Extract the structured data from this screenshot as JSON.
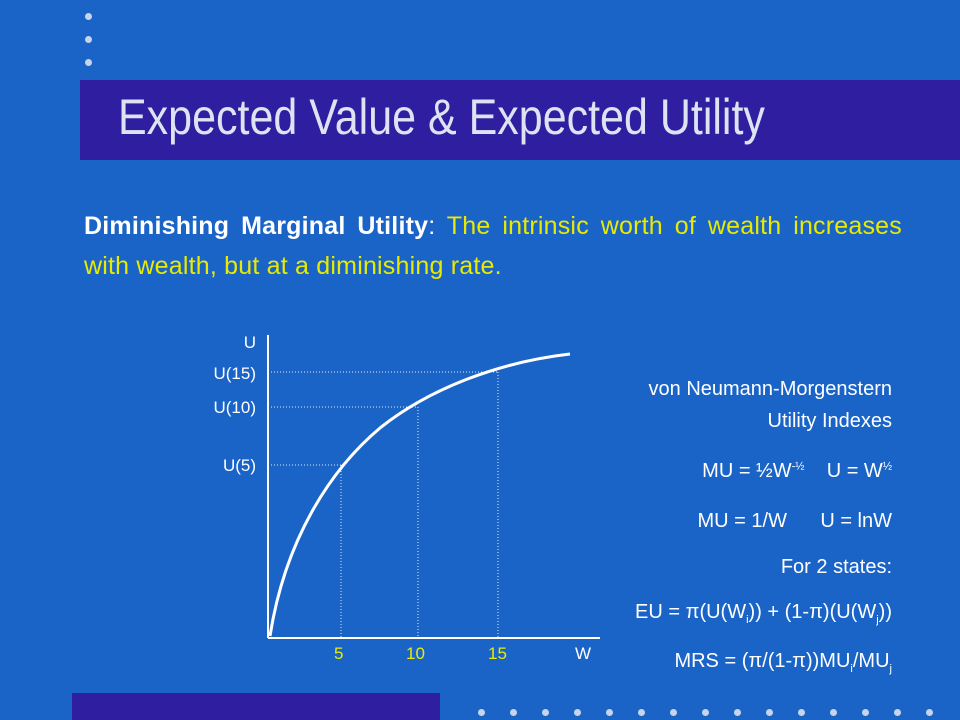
{
  "title": "Expected Value & Expected Utility",
  "intro": {
    "term": "Diminishing Marginal Utility",
    "colon": ":",
    "text": " The intrinsic worth of wealth increases with wealth, but at a diminishing rate."
  },
  "graph": {
    "y_axis_label": "U",
    "x_axis_label": "W",
    "y_markers": [
      "U(15)",
      "U(10)",
      "U(5)"
    ],
    "x_ticks": [
      "5",
      "10",
      "15"
    ],
    "curve": "concave utility function U(W)"
  },
  "info": {
    "heading_line1": "von Neumann-Morgenstern",
    "heading_line2": "Utility Indexes",
    "sqrt_mu": "MU = ½W",
    "sqrt_mu_exp": "-½",
    "sqrt_u": "U = W",
    "sqrt_u_exp": "½",
    "log_mu": "MU = 1/W",
    "log_u": "U = lnW",
    "states": "For 2 states:",
    "eu_a": "EU = ",
    "pi": "π",
    "eu_b": "(U(W",
    "sub_i": "i",
    "eu_c": ")) + (1-",
    "eu_d": ")(U(W",
    "sub_j": "j",
    "eu_e": "))",
    "mrs_a": "MRS = (",
    "mrs_b": "/(1-",
    "mrs_c": "))MU",
    "mrs_d": "/MU"
  },
  "colors": {
    "background": "#1a64c8",
    "title_band": "#2f1ea0",
    "highlight_text": "#e9ea00"
  }
}
